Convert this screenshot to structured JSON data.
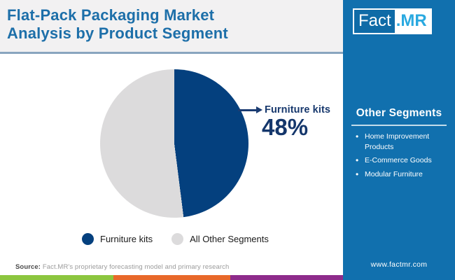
{
  "header": {
    "title_line1": "Flat-Pack Packaging Market",
    "title_line2": "Analysis by Product Segment",
    "title_color": "#1d6fa9"
  },
  "logo": {
    "text_primary": "Fact",
    "text_secondary": ".MR",
    "accent_color": "#2aa9e0"
  },
  "chart_data": {
    "type": "pie",
    "title": "Flat-Pack Packaging Market Analysis by Product Segment",
    "categories": [
      "Furniture kits",
      "All Other Segments"
    ],
    "values": [
      48,
      52
    ],
    "unit": "%",
    "colors": [
      "#04407e",
      "#dcdbdc"
    ],
    "start_angle_deg": 0,
    "direction": "clockwise",
    "legend_position": "bottom",
    "annotation": {
      "target": "Furniture kits",
      "label": "Furniture kits",
      "value_label": "48%"
    }
  },
  "sidebar": {
    "background": "#1170ae",
    "heading": "Other Segments",
    "items": [
      "Home Improvement Products",
      "E-Commerce Goods",
      "Modular Furniture"
    ],
    "website": "www.factmr.com"
  },
  "footer": {
    "source_label": "Source:",
    "source_text": " Fact.MR's proprietary forecasting model and primary research",
    "strip_colors": [
      "#8cc63f",
      "#e8682a",
      "#8e2b8b"
    ]
  }
}
